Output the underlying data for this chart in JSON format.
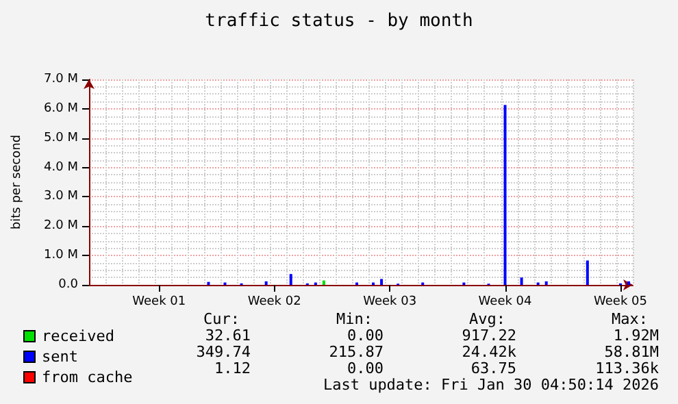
{
  "chart_data": {
    "type": "bar",
    "title": "traffic status - by month",
    "ylabel": "bits per second",
    "categories": [
      null,
      null,
      null,
      null,
      null,
      null,
      null,
      null,
      "Week 01",
      null,
      null,
      null,
      null,
      null,
      null,
      null,
      null,
      null,
      null,
      null,
      null,
      null,
      "Week 02",
      null,
      null,
      null,
      null,
      null,
      null,
      null,
      null,
      null,
      null,
      null,
      null,
      null,
      "Week 03",
      null,
      null,
      null,
      null,
      null,
      null,
      null,
      null,
      null,
      null,
      null,
      null,
      null,
      "Week 04",
      null,
      null,
      null,
      null,
      null,
      null,
      null,
      null,
      null,
      null,
      null,
      null,
      null,
      "Week 05",
      null
    ],
    "ylim": [
      0,
      7000000
    ],
    "yticks": [
      {
        "value": 0,
        "label": "0.0"
      },
      {
        "value": 1000000,
        "label": "1.0 M"
      },
      {
        "value": 2000000,
        "label": "2.0 M"
      },
      {
        "value": 3000000,
        "label": "3.0 M"
      },
      {
        "value": 4000000,
        "label": "4.0 M"
      },
      {
        "value": 5000000,
        "label": "5.0 M"
      },
      {
        "value": 6000000,
        "label": "6.0 M"
      },
      {
        "value": 7000000,
        "label": "7.0 M"
      }
    ],
    "grid": true,
    "legend": "bottom left",
    "series": [
      {
        "name": "received",
        "color": "#00e000",
        "values": [
          null,
          null,
          null,
          null,
          null,
          null,
          null,
          null,
          null,
          null,
          null,
          null,
          null,
          null,
          null,
          null,
          null,
          null,
          null,
          null,
          null,
          null,
          null,
          null,
          null,
          null,
          null,
          null,
          150000,
          null,
          null,
          null,
          null,
          null,
          null,
          null,
          null,
          null,
          null,
          null,
          null,
          null,
          null,
          null,
          null,
          null,
          null,
          null,
          null,
          null,
          null,
          null,
          null,
          null,
          null,
          null,
          null,
          null,
          null,
          null,
          null,
          null,
          null,
          null,
          null,
          null
        ]
      },
      {
        "name": "sent",
        "color": "#0000ff",
        "values": [
          null,
          null,
          null,
          null,
          null,
          null,
          null,
          null,
          null,
          null,
          null,
          null,
          null,
          null,
          100000,
          null,
          80000,
          null,
          50000,
          null,
          null,
          120000,
          null,
          null,
          370000,
          null,
          50000,
          80000,
          null,
          null,
          null,
          null,
          80000,
          null,
          80000,
          200000,
          null,
          40000,
          null,
          null,
          80000,
          null,
          null,
          null,
          null,
          80000,
          null,
          null,
          40000,
          null,
          6130000,
          null,
          250000,
          null,
          80000,
          120000,
          null,
          null,
          null,
          null,
          830000,
          null,
          null,
          null,
          50000,
          120000
        ]
      },
      {
        "name": "from cache",
        "color": "#ff0000",
        "values": [
          null,
          null,
          null,
          null,
          null,
          null,
          null,
          null,
          null,
          null,
          null,
          null,
          null,
          null,
          null,
          null,
          null,
          null,
          null,
          null,
          null,
          null,
          null,
          null,
          null,
          null,
          null,
          null,
          0,
          null,
          null,
          null,
          null,
          null,
          null,
          null,
          null,
          null,
          null,
          null,
          null,
          null,
          null,
          null,
          null,
          null,
          null,
          null,
          null,
          null,
          null,
          null,
          null,
          null,
          null,
          null,
          null,
          null,
          null,
          null,
          null,
          null,
          null,
          null,
          null,
          null
        ]
      }
    ],
    "annotations": [
      "Cur:",
      "Min:",
      "Avg:",
      "Max:",
      "32.61",
      "0.00",
      "917.22",
      "1.92M",
      "349.74",
      "215.87",
      "24.42k",
      "58.81M",
      "1.12",
      "0.00",
      "63.75",
      "113.36k",
      "Last update: Fri Jan 30 04:50:14 2026"
    ]
  }
}
